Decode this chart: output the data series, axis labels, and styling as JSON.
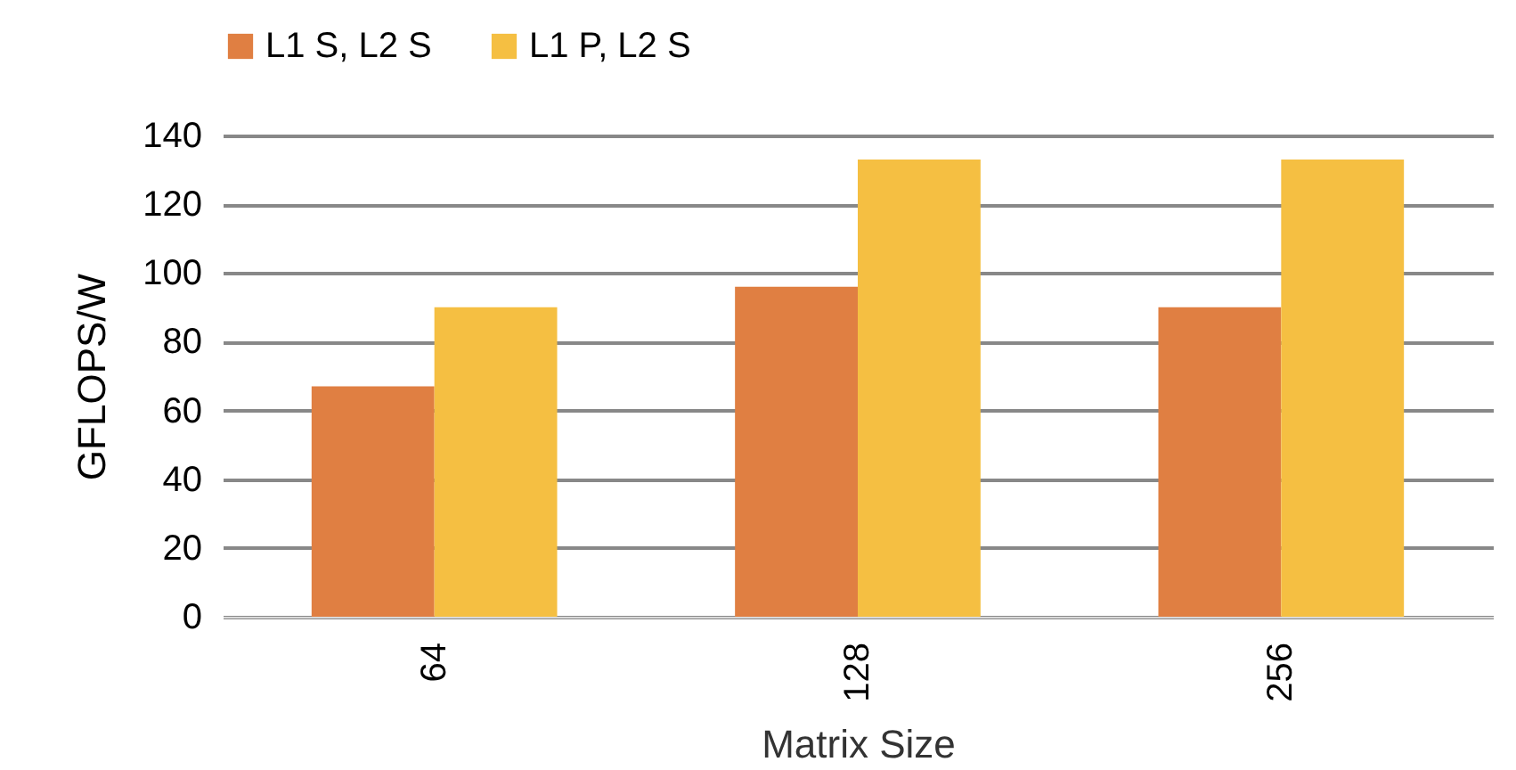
{
  "chart_data": {
    "type": "bar",
    "xlabel": "Matrix Size",
    "ylabel": "GFLOPS/W",
    "categories": [
      "64",
      "128",
      "256"
    ],
    "series": [
      {
        "name": "L1 S, L2 S",
        "color": "#e07f42",
        "values": [
          67,
          96,
          90
        ]
      },
      {
        "name": "L1 P, L2 S",
        "color": "#f5bf42",
        "values": [
          90,
          133,
          133
        ]
      }
    ],
    "ylim": [
      0,
      140
    ],
    "yticks": [
      0,
      20,
      40,
      60,
      80,
      100,
      120,
      140
    ],
    "grid": "y",
    "legend": "top"
  }
}
